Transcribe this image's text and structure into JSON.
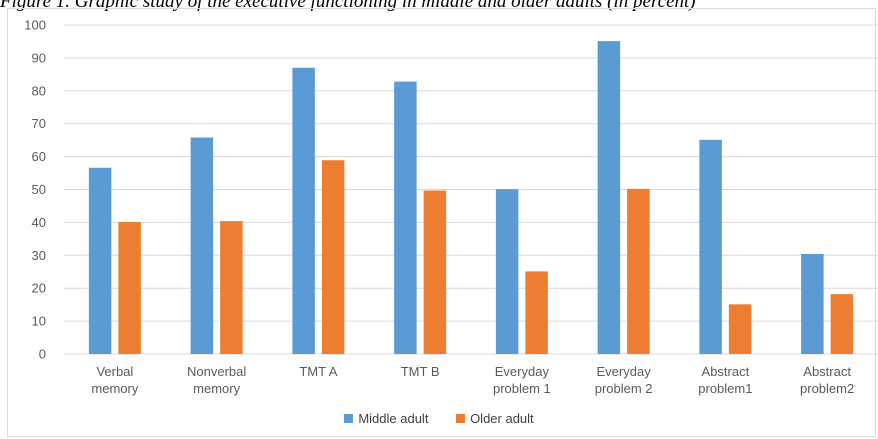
{
  "caption": "Figure 1. Graphic study of the executive functioning in middle and older adults (in percent)",
  "colors": {
    "middle": "#5b9bd5",
    "older": "#ed7d31",
    "grid": "#d9d9d9",
    "text": "#595959"
  },
  "chart_data": {
    "type": "bar",
    "categories": [
      [
        "Verbal",
        "memory"
      ],
      [
        "Nonverbal",
        "memory"
      ],
      [
        "TMT A"
      ],
      [
        "TMT B"
      ],
      [
        "Everyday",
        "problem 1"
      ],
      [
        "Everyday",
        "problem 2"
      ],
      [
        "Abstract",
        "problem1"
      ],
      [
        "Abstract",
        "problem2"
      ]
    ],
    "series": [
      {
        "name": "Middle adult",
        "values": [
          56.6,
          65.8,
          87,
          82.8,
          50.1,
          95.1,
          65.1,
          30.4
        ]
      },
      {
        "name": "Older adult",
        "values": [
          40.1,
          40.4,
          58.9,
          49.7,
          25.1,
          50.2,
          15.1,
          18.2
        ]
      }
    ],
    "ylim": [
      0,
      100
    ],
    "yticks": [
      0,
      10,
      20,
      30,
      40,
      50,
      60,
      70,
      80,
      90,
      100
    ],
    "grid": true,
    "legend": "bottom"
  }
}
